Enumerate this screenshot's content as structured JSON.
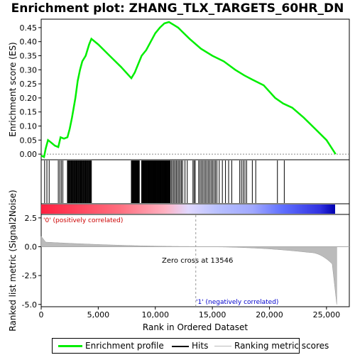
{
  "chart_data": {
    "type": "line",
    "title": "Enrichment plot: ZHANG_TLX_TARGETS_60HR_DN",
    "xlabel": "Rank in Ordered Dataset",
    "ylabel_top": "Enrichment score (ES)",
    "ylabel_bottom": "Ranked list metric (Signal2Noise)",
    "xlim": [
      0,
      27000
    ],
    "ylim_top": [
      -0.02,
      0.48
    ],
    "ylim_bottom": [
      -5.2,
      2.8
    ],
    "x_ticks": [
      "0",
      "5,000",
      "10,000",
      "15,000",
      "20,000",
      "25,000"
    ],
    "x_tick_values": [
      0,
      5000,
      10000,
      15000,
      20000,
      25000
    ],
    "y_ticks_top": [
      "0.00",
      "0.05",
      "0.10",
      "0.15",
      "0.20",
      "0.25",
      "0.30",
      "0.35",
      "0.40",
      "0.45"
    ],
    "y_tick_values_top": [
      0,
      0.05,
      0.1,
      0.15,
      0.2,
      0.25,
      0.3,
      0.35,
      0.4,
      0.45
    ],
    "y_ticks_bottom": [
      "2.5",
      "0.0",
      "-2.5",
      "-5.0"
    ],
    "y_tick_values_bottom": [
      2.5,
      0,
      -2.5,
      -5
    ],
    "series": [
      {
        "name": "Enrichment profile",
        "color": "#00ee00",
        "x": [
          0,
          250,
          400,
          600,
          900,
          1200,
          1500,
          1700,
          2000,
          2300,
          2500,
          2700,
          3000,
          3200,
          3400,
          3600,
          3900,
          4200,
          4400,
          5000,
          6000,
          7000,
          7900,
          8200,
          8500,
          8800,
          9200,
          9600,
          10000,
          10400,
          10800,
          11200,
          11600,
          12000,
          13000,
          14000,
          15000,
          16000,
          17000,
          17800,
          18500,
          19500,
          20500,
          21200,
          22000,
          23000,
          24000,
          25000,
          25800
        ],
        "y": [
          -0.005,
          -0.01,
          0.02,
          0.05,
          0.04,
          0.03,
          0.025,
          0.06,
          0.055,
          0.06,
          0.09,
          0.13,
          0.2,
          0.26,
          0.3,
          0.33,
          0.35,
          0.39,
          0.41,
          0.39,
          0.35,
          0.31,
          0.27,
          0.29,
          0.32,
          0.35,
          0.37,
          0.4,
          0.43,
          0.45,
          0.465,
          0.47,
          0.46,
          0.45,
          0.41,
          0.375,
          0.35,
          0.33,
          0.3,
          0.28,
          0.265,
          0.245,
          0.2,
          0.18,
          0.165,
          0.13,
          0.09,
          0.05,
          0.0
        ]
      }
    ],
    "hit_clusters": [
      [
        300,
        700,
        3
      ],
      [
        1500,
        1900,
        4
      ],
      [
        2300,
        4400,
        40
      ],
      [
        7900,
        8600,
        16
      ],
      [
        8800,
        11300,
        60
      ],
      [
        11400,
        12400,
        10
      ],
      [
        12600,
        12800,
        2
      ],
      [
        13300,
        13500,
        3
      ],
      [
        13800,
        15400,
        14
      ],
      [
        15600,
        16700,
        5
      ],
      [
        17400,
        18000,
        5
      ],
      [
        18500,
        18800,
        2
      ],
      [
        20700,
        20800,
        1
      ],
      [
        21300,
        21400,
        1
      ]
    ],
    "zero_cross_label": "Zero cross at 13546",
    "zero_cross_x": 13546,
    "positive_label": "'0' (positively correlated)",
    "negative_label": "'1' (negatively correlated)",
    "legend": [
      "Enrichment profile",
      "Hits",
      "Ranking metric scores"
    ]
  }
}
